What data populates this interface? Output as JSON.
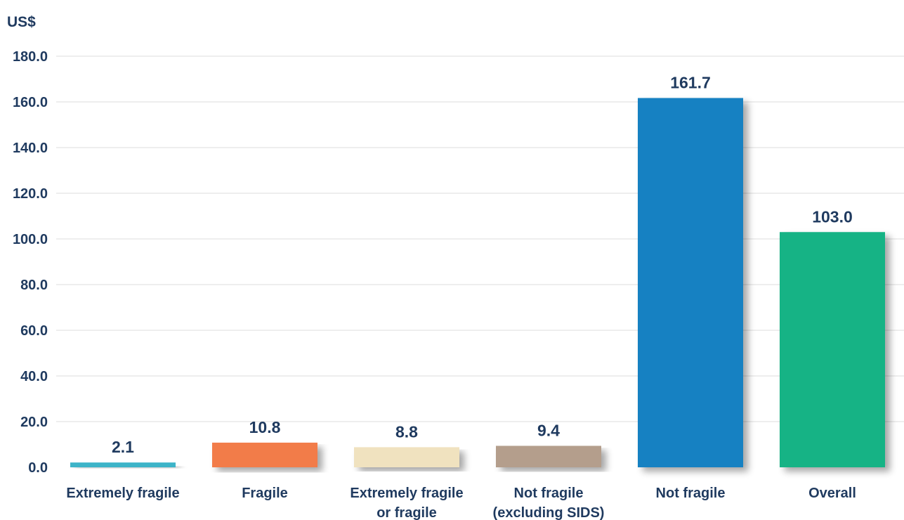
{
  "chart_data": {
    "type": "bar",
    "ylabel": "US$",
    "ylim": [
      0,
      180
    ],
    "yticks": [
      "0.0",
      "20.0",
      "40.0",
      "60.0",
      "80.0",
      "100.0",
      "120.0",
      "140.0",
      "160.0",
      "180.0"
    ],
    "grid": "horizontal",
    "categories": [
      [
        "Extremely fragile"
      ],
      [
        "Fragile"
      ],
      [
        "Extremely fragile",
        "or fragile"
      ],
      [
        "Not fragile",
        "(excluding SIDS)"
      ],
      [
        "Not fragile"
      ],
      [
        "Overall"
      ]
    ],
    "values": [
      2.1,
      10.8,
      8.8,
      9.4,
      161.7,
      103.0
    ],
    "value_labels": [
      "2.1",
      "10.8",
      "8.8",
      "9.4",
      "161.7",
      "103.0"
    ],
    "colors": [
      "#3cb4c8",
      "#f27b4a",
      "#f0e2bf",
      "#b49e8c",
      "#1681c2",
      "#19b385"
    ]
  }
}
